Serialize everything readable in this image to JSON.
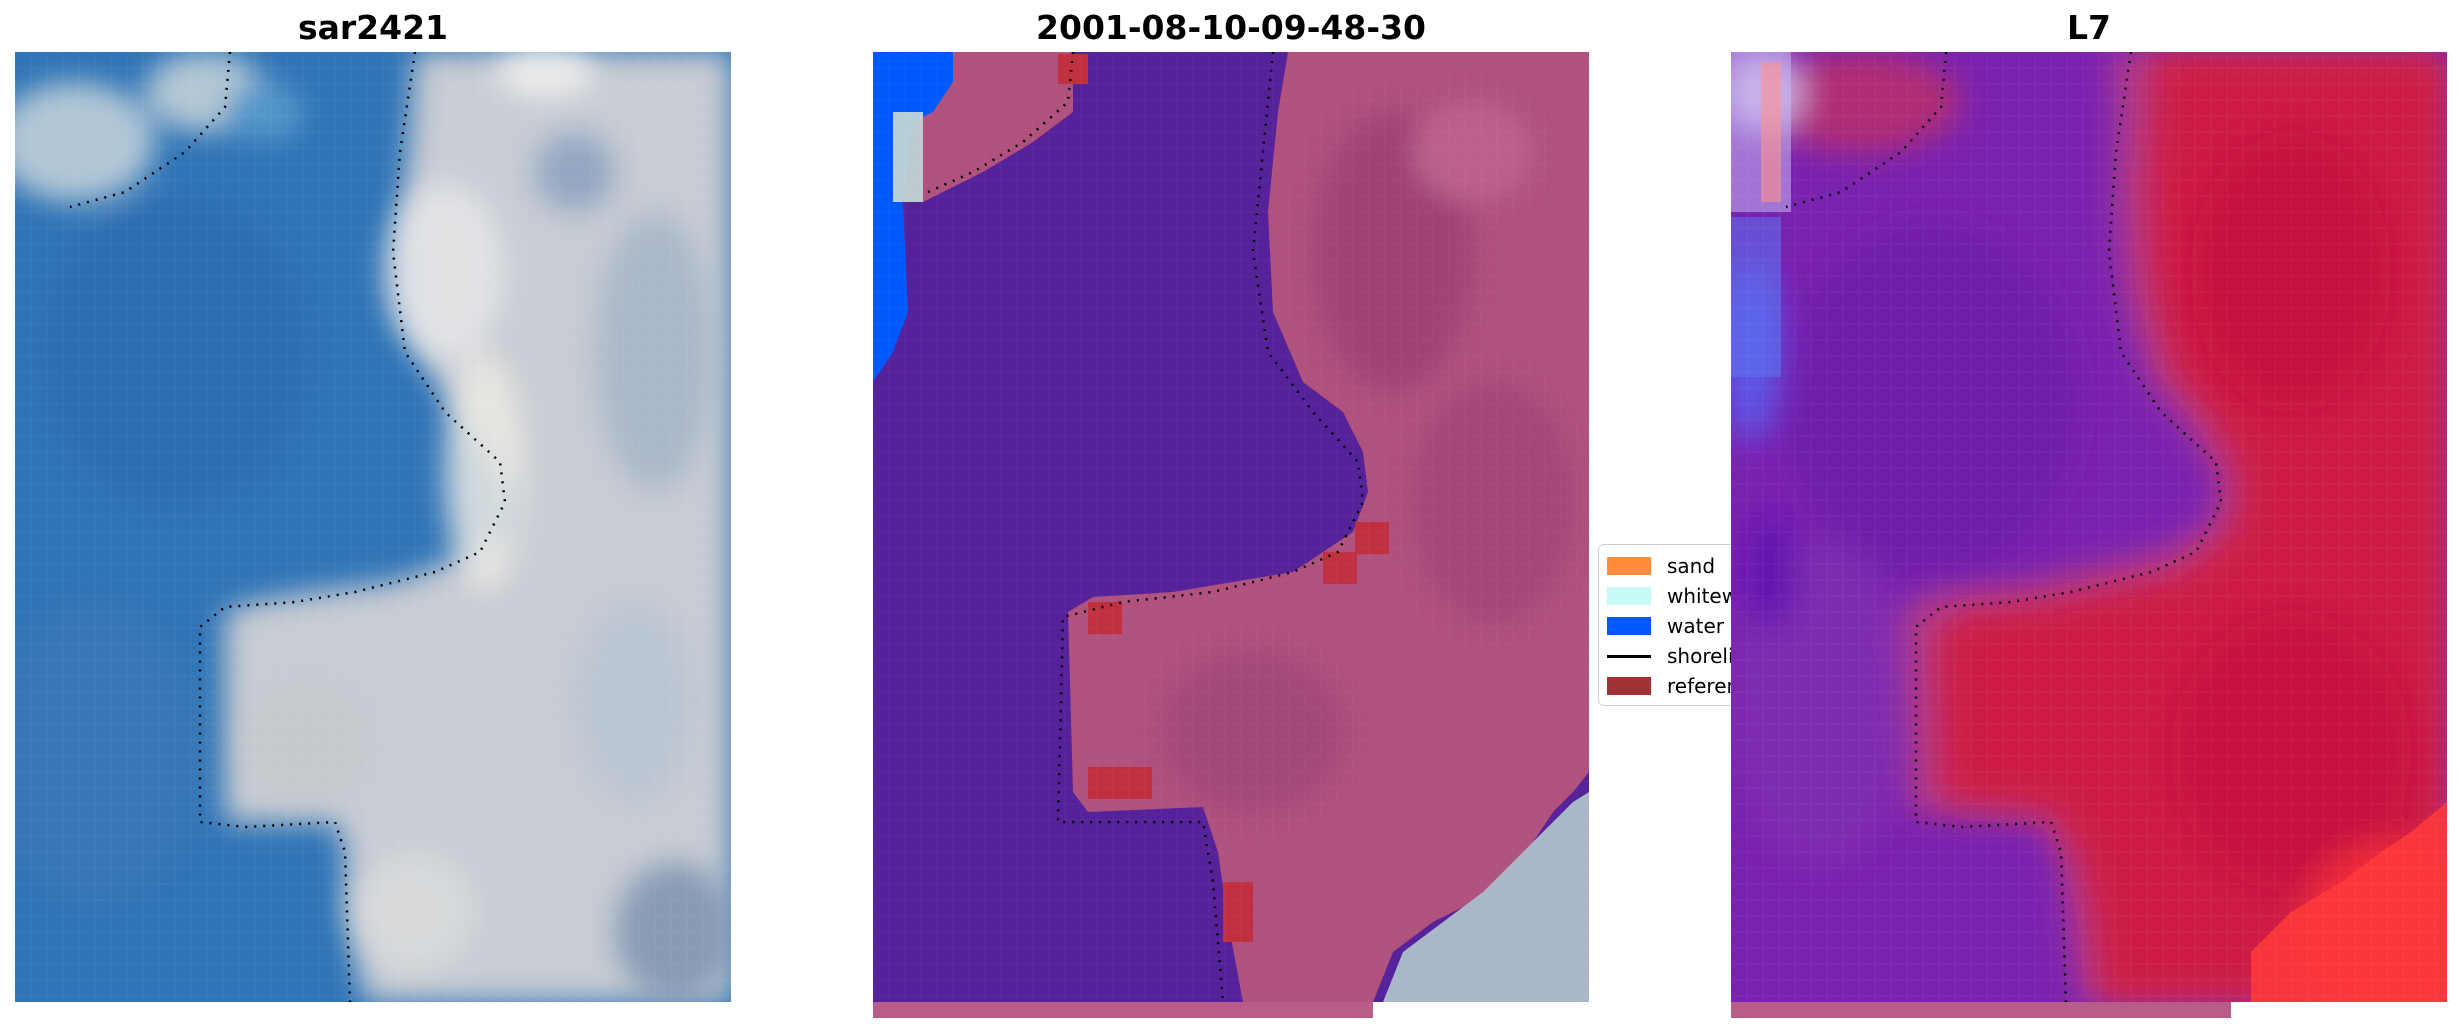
{
  "panels": [
    {
      "title": "sar2421",
      "kind": "rgb"
    },
    {
      "title": "2001-08-10-09-48-30",
      "kind": "classified"
    },
    {
      "title": "L7",
      "kind": "mndwi"
    }
  ],
  "legend": {
    "items": [
      {
        "label": "sand",
        "color": "#ff8c3a",
        "type": "patch"
      },
      {
        "label": "whitewater",
        "color": "#c8fbf7",
        "type": "patch"
      },
      {
        "label": "water",
        "color": "#0059ff",
        "type": "patch"
      },
      {
        "label": "shoreline",
        "color": "#000000",
        "type": "line"
      },
      {
        "label": "reference",
        "color": "#a33233",
        "type": "patch"
      }
    ]
  },
  "colors": {
    "water_class": "#55229a",
    "land_overlay": "#b0517e",
    "reference_patch": "#c03040",
    "rgb_water": "#2f74b6",
    "rgb_land": "#c9ccd4",
    "index_water": "#7a22b0",
    "index_land": "#cc1a44"
  }
}
